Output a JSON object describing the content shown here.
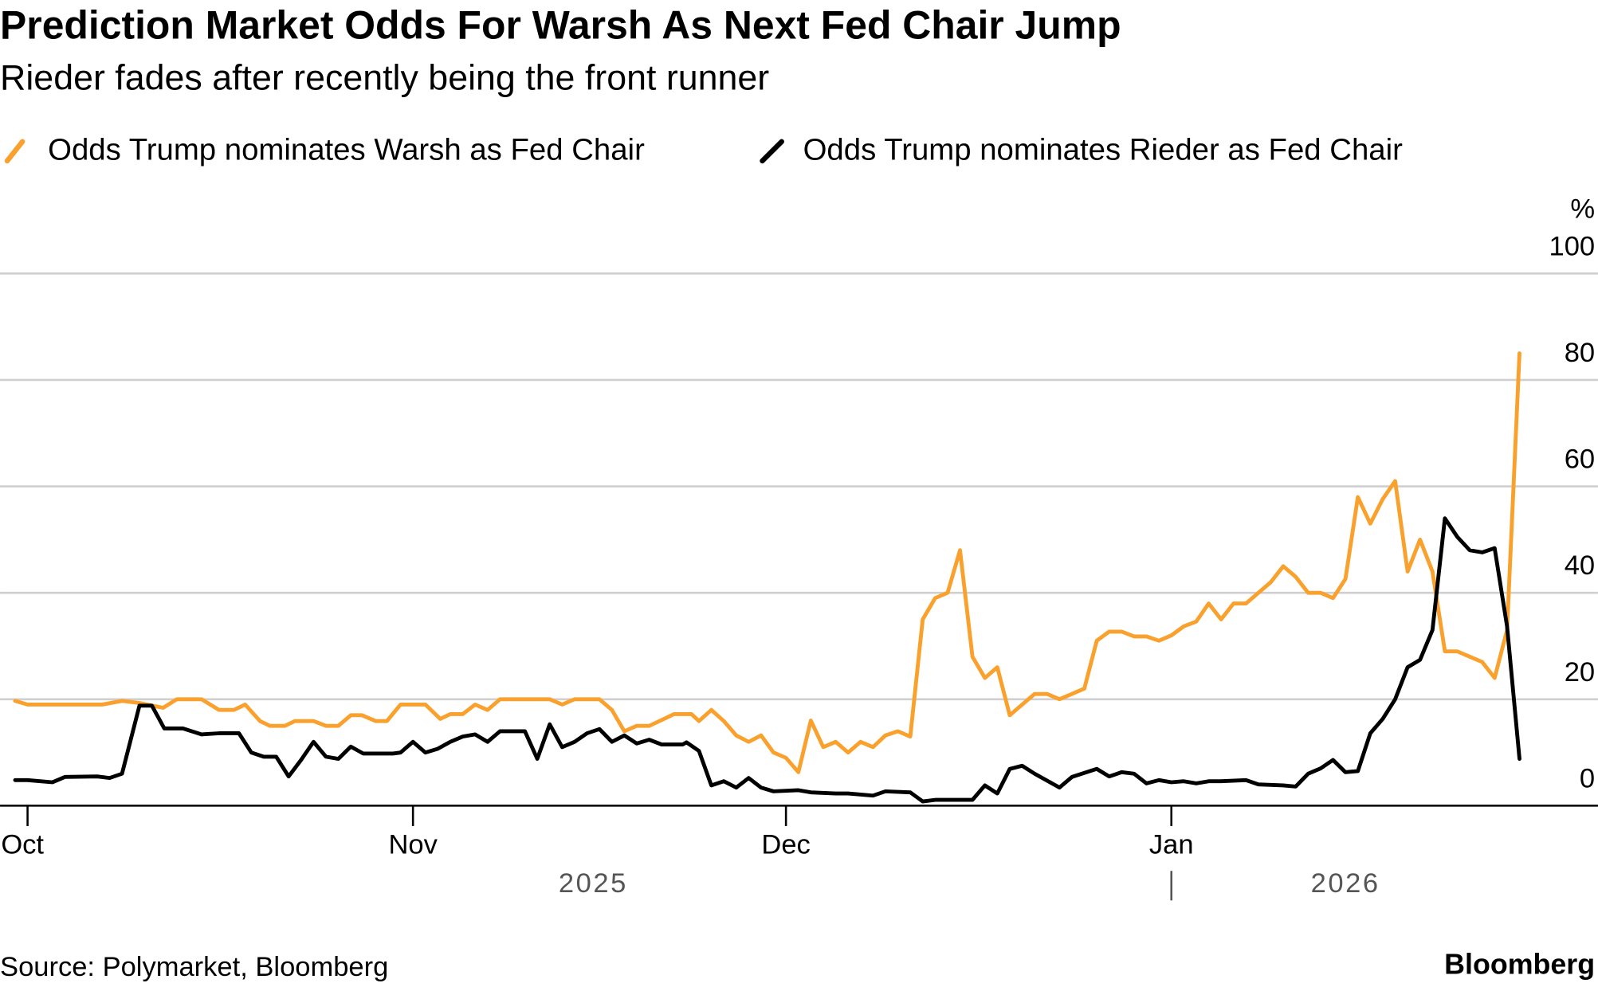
{
  "chart_data": {
    "type": "line",
    "title": "Prediction Market Odds For Warsh As Next Fed Chair Jump",
    "subtitle": "Rieder fades after recently being the front runner",
    "x_unit": "days since 2025-10-01",
    "x_ticks": [
      {
        "day": 0,
        "label": "Oct"
      },
      {
        "day": 31,
        "label": "Nov"
      },
      {
        "day": 61,
        "label": "Dec"
      },
      {
        "day": 92,
        "label": "Jan"
      }
    ],
    "year_labels": [
      {
        "label": "2025",
        "center_day": 45.5
      },
      {
        "label": "2026",
        "center_day": 106
      }
    ],
    "year_separator_day": 92,
    "ylabel": "%",
    "ylim": [
      0,
      100
    ],
    "y_ticks": [
      "0",
      "20",
      "40",
      "60",
      "80",
      "100"
    ],
    "grid": true,
    "legend_placement": "top-left",
    "series": [
      {
        "name": "Odds Trump nominates Warsh as Fed Chair",
        "color": "#f9a12c",
        "points": [
          [
            -1,
            19.7
          ],
          [
            0,
            19
          ],
          [
            6,
            19
          ],
          [
            7.6,
            19.7
          ],
          [
            9,
            19.3
          ],
          [
            10.9,
            18.4
          ],
          [
            12,
            20
          ],
          [
            14,
            20
          ],
          [
            15.4,
            18
          ],
          [
            16.6,
            18
          ],
          [
            17.5,
            19
          ],
          [
            18.7,
            15.9
          ],
          [
            19.5,
            15
          ],
          [
            20.7,
            15
          ],
          [
            21.5,
            15.9
          ],
          [
            23,
            15.9
          ],
          [
            24,
            15
          ],
          [
            25,
            15
          ],
          [
            26,
            17
          ],
          [
            26.9,
            17
          ],
          [
            28,
            15.9
          ],
          [
            28.9,
            15.9
          ],
          [
            30,
            19
          ],
          [
            32,
            19
          ],
          [
            33.2,
            16.3
          ],
          [
            34,
            17.2
          ],
          [
            35,
            17.2
          ],
          [
            36,
            19
          ],
          [
            37,
            18
          ],
          [
            38,
            20
          ],
          [
            42,
            20
          ],
          [
            43,
            19
          ],
          [
            44,
            20
          ],
          [
            46,
            20
          ],
          [
            47,
            18
          ],
          [
            48,
            14
          ],
          [
            49,
            15
          ],
          [
            50,
            15
          ],
          [
            51.2,
            16.3
          ],
          [
            52,
            17.2
          ],
          [
            53.4,
            17.2
          ],
          [
            54,
            15.9
          ],
          [
            55,
            18
          ],
          [
            56,
            15.9
          ],
          [
            57,
            13.2
          ],
          [
            58,
            12
          ],
          [
            59,
            13.2
          ],
          [
            60,
            10
          ],
          [
            61,
            9
          ],
          [
            62,
            6.3
          ],
          [
            63,
            16
          ],
          [
            64,
            11
          ],
          [
            65,
            12
          ],
          [
            66,
            10
          ],
          [
            67,
            12
          ],
          [
            68,
            11
          ],
          [
            69,
            13.2
          ],
          [
            70,
            14
          ],
          [
            71,
            13
          ],
          [
            72,
            35
          ],
          [
            73,
            39
          ],
          [
            74,
            40
          ],
          [
            75,
            48
          ],
          [
            76,
            28
          ],
          [
            77,
            24
          ],
          [
            78,
            26
          ],
          [
            79,
            17
          ],
          [
            80,
            19
          ],
          [
            81,
            21
          ],
          [
            82,
            21
          ],
          [
            83,
            20
          ],
          [
            84,
            21
          ],
          [
            85,
            22
          ],
          [
            86,
            31
          ],
          [
            87,
            32.7
          ],
          [
            88,
            32.7
          ],
          [
            89,
            31.8
          ],
          [
            90,
            31.8
          ],
          [
            91,
            31
          ],
          [
            92,
            32
          ],
          [
            93,
            33.7
          ],
          [
            94,
            34.6
          ],
          [
            95,
            38
          ],
          [
            96,
            35
          ],
          [
            97,
            38
          ],
          [
            98,
            38
          ],
          [
            99,
            40
          ],
          [
            100,
            42
          ],
          [
            101,
            45
          ],
          [
            102,
            43
          ],
          [
            103,
            40
          ],
          [
            104,
            40
          ],
          [
            105,
            39
          ],
          [
            106,
            42.6
          ],
          [
            107,
            58
          ],
          [
            108,
            53
          ],
          [
            109,
            57.6
          ],
          [
            110,
            61
          ],
          [
            111,
            44
          ],
          [
            112,
            50
          ],
          [
            113,
            44
          ],
          [
            114,
            29
          ],
          [
            115,
            29
          ],
          [
            116,
            28
          ],
          [
            117,
            27
          ],
          [
            118,
            24
          ],
          [
            119,
            33
          ],
          [
            120,
            85
          ]
        ]
      },
      {
        "name": "Odds Trump nominates Rieder as Fed Chair",
        "color": "#000000",
        "points": [
          [
            -1,
            4.8
          ],
          [
            0,
            4.8
          ],
          [
            2,
            4.4
          ],
          [
            3,
            5.4
          ],
          [
            5.6,
            5.5
          ],
          [
            6.6,
            5.2
          ],
          [
            7.6,
            6
          ],
          [
            9,
            18.8
          ],
          [
            10,
            18.8
          ],
          [
            11,
            14.5
          ],
          [
            12.5,
            14.5
          ],
          [
            14,
            13.4
          ],
          [
            15.4,
            13.6
          ],
          [
            17,
            13.6
          ],
          [
            18,
            10
          ],
          [
            19,
            9.2
          ],
          [
            20,
            9.2
          ],
          [
            21,
            5.5
          ],
          [
            22,
            8.6
          ],
          [
            23,
            12
          ],
          [
            24,
            9.2
          ],
          [
            25,
            8.8
          ],
          [
            26,
            11.1
          ],
          [
            27,
            9.8
          ],
          [
            29.4,
            9.8
          ],
          [
            30,
            10
          ],
          [
            31,
            12
          ],
          [
            32,
            10
          ],
          [
            33,
            10.7
          ],
          [
            34,
            12
          ],
          [
            35,
            13
          ],
          [
            36,
            13.4
          ],
          [
            37,
            12
          ],
          [
            38,
            14
          ],
          [
            40,
            14
          ],
          [
            41,
            8.8
          ],
          [
            42,
            15.3
          ],
          [
            43,
            11
          ],
          [
            44,
            12
          ],
          [
            45,
            13.6
          ],
          [
            46,
            14.4
          ],
          [
            47,
            12
          ],
          [
            48,
            13.2
          ],
          [
            49,
            11.7
          ],
          [
            50,
            12.4
          ],
          [
            51,
            11.5
          ],
          [
            52.7,
            11.5
          ],
          [
            53,
            11.9
          ],
          [
            54,
            10.3
          ],
          [
            55,
            3.8
          ],
          [
            56,
            4.6
          ],
          [
            57,
            3.4
          ],
          [
            58,
            5.2
          ],
          [
            59,
            3.4
          ],
          [
            60,
            2.7
          ],
          [
            62,
            2.9
          ],
          [
            63,
            2.5
          ],
          [
            65,
            2.3
          ],
          [
            66,
            2.3
          ],
          [
            68,
            1.9
          ],
          [
            69,
            2.7
          ],
          [
            71,
            2.5
          ],
          [
            72,
            0.8
          ],
          [
            73,
            1.1
          ],
          [
            76,
            1.1
          ],
          [
            77,
            3.8
          ],
          [
            78,
            2.3
          ],
          [
            79,
            6.9
          ],
          [
            80,
            7.5
          ],
          [
            81,
            6
          ],
          [
            83,
            3.4
          ],
          [
            84,
            5.4
          ],
          [
            86,
            6.9
          ],
          [
            87,
            5.5
          ],
          [
            88,
            6.3
          ],
          [
            89,
            6
          ],
          [
            90,
            4.2
          ],
          [
            91,
            4.8
          ],
          [
            92,
            4.4
          ],
          [
            93,
            4.6
          ],
          [
            94,
            4.2
          ],
          [
            95,
            4.6
          ],
          [
            96,
            4.6
          ],
          [
            98,
            4.8
          ],
          [
            99,
            4
          ],
          [
            101,
            3.8
          ],
          [
            102,
            3.6
          ],
          [
            103,
            6
          ],
          [
            104,
            7
          ],
          [
            105,
            8.6
          ],
          [
            106,
            6.3
          ],
          [
            107,
            6.5
          ],
          [
            108,
            13.6
          ],
          [
            109,
            16.3
          ],
          [
            110,
            20
          ],
          [
            111,
            26
          ],
          [
            112,
            27.4
          ],
          [
            113,
            33
          ],
          [
            114,
            54
          ],
          [
            115,
            50.5
          ],
          [
            116,
            48
          ],
          [
            117,
            47.6
          ],
          [
            118,
            48.4
          ],
          [
            119,
            33.7
          ],
          [
            120,
            8.8
          ]
        ]
      }
    ],
    "source": "Source: Polymarket, Bloomberg",
    "brand": "Bloomberg"
  }
}
